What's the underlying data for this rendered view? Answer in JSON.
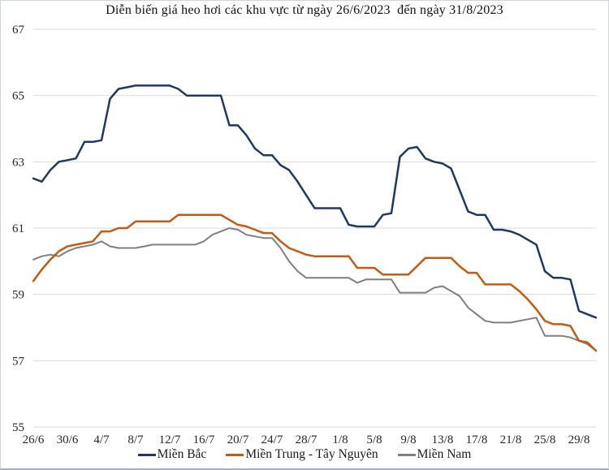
{
  "page": {
    "background": "#ffffff",
    "border_color": "#cfd4db"
  },
  "chart_data": {
    "type": "line",
    "title": "Diễn biến giá heo hơi các khu vực từ ngày 26/6/2023  đến ngày 31/8/2023",
    "xlabel": "",
    "ylabel": "",
    "ylim": [
      55,
      67
    ],
    "y_ticks": [
      67,
      65,
      63,
      61,
      59,
      57,
      55
    ],
    "grid": "horizontal",
    "grid_color": "#d9d9d9",
    "legend_position": "bottom",
    "x_tick_every": 4,
    "x_tick_labels": [
      "26/6",
      "30/6",
      "4/7",
      "8/7",
      "12/7",
      "16/7",
      "20/7",
      "24/7",
      "28/7",
      "1/8",
      "5/8",
      "9/8",
      "13/8",
      "17/8",
      "21/8",
      "25/8",
      "29/8"
    ],
    "x_dates": [
      "26/6",
      "27/6",
      "28/6",
      "29/6",
      "30/6",
      "1/7",
      "2/7",
      "3/7",
      "4/7",
      "5/7",
      "6/7",
      "7/7",
      "8/7",
      "9/7",
      "10/7",
      "11/7",
      "12/7",
      "13/7",
      "14/7",
      "15/7",
      "16/7",
      "17/7",
      "18/7",
      "19/7",
      "20/7",
      "21/7",
      "22/7",
      "23/7",
      "24/7",
      "25/7",
      "26/7",
      "27/7",
      "28/7",
      "29/7",
      "30/7",
      "31/7",
      "1/8",
      "2/8",
      "3/8",
      "4/8",
      "5/8",
      "6/8",
      "7/8",
      "8/8",
      "9/8",
      "10/8",
      "11/8",
      "12/8",
      "13/8",
      "14/8",
      "15/8",
      "16/8",
      "17/8",
      "18/8",
      "19/8",
      "20/8",
      "21/8",
      "22/8",
      "23/8",
      "24/8",
      "25/8",
      "26/8",
      "27/8",
      "28/8",
      "29/8",
      "30/8",
      "31/8"
    ],
    "series": [
      {
        "name": "Miền Bắc",
        "color": "#1f3864",
        "values": [
          62.5,
          62.4,
          62.75,
          63.0,
          63.05,
          63.1,
          63.6,
          63.6,
          63.65,
          64.9,
          65.2,
          65.25,
          65.3,
          65.3,
          65.3,
          65.3,
          65.3,
          65.2,
          65.0,
          65.0,
          65.0,
          65.0,
          65.0,
          64.1,
          64.1,
          63.8,
          63.4,
          63.2,
          63.2,
          62.9,
          62.75,
          62.4,
          62.0,
          61.6,
          61.6,
          61.6,
          61.6,
          61.1,
          61.05,
          61.05,
          61.05,
          61.4,
          61.45,
          63.15,
          63.4,
          63.45,
          63.1,
          63.0,
          62.95,
          62.8,
          62.15,
          61.5,
          61.4,
          61.4,
          60.95,
          60.95,
          60.9,
          60.8,
          60.65,
          60.5,
          59.7,
          59.5,
          59.5,
          59.45,
          58.5,
          58.4,
          58.3
        ]
      },
      {
        "name": "Miền Trung - Tây Nguyên",
        "color": "#c55a11",
        "values": [
          59.4,
          59.75,
          60.05,
          60.3,
          60.45,
          60.5,
          60.55,
          60.6,
          60.9,
          60.9,
          61.0,
          61.0,
          61.2,
          61.2,
          61.2,
          61.2,
          61.2,
          61.4,
          61.4,
          61.4,
          61.4,
          61.4,
          61.4,
          61.25,
          61.1,
          61.05,
          60.95,
          60.85,
          60.85,
          60.6,
          60.4,
          60.3,
          60.2,
          60.15,
          60.15,
          60.15,
          60.15,
          60.15,
          59.8,
          59.8,
          59.8,
          59.6,
          59.6,
          59.6,
          59.6,
          59.85,
          60.1,
          60.1,
          60.1,
          60.1,
          59.85,
          59.65,
          59.65,
          59.3,
          59.3,
          59.3,
          59.3,
          59.1,
          58.85,
          58.55,
          58.2,
          58.1,
          58.1,
          58.05,
          57.6,
          57.55,
          57.3
        ]
      },
      {
        "name": "Miền Nam",
        "color": "#7f7f7f",
        "values": [
          60.05,
          60.15,
          60.2,
          60.15,
          60.3,
          60.4,
          60.45,
          60.5,
          60.6,
          60.45,
          60.4,
          60.4,
          60.4,
          60.45,
          60.5,
          60.5,
          60.5,
          60.5,
          60.5,
          60.5,
          60.6,
          60.8,
          60.9,
          61.0,
          60.95,
          60.8,
          60.75,
          60.7,
          60.7,
          60.4,
          60.0,
          59.7,
          59.5,
          59.5,
          59.5,
          59.5,
          59.5,
          59.5,
          59.35,
          59.45,
          59.45,
          59.45,
          59.45,
          59.05,
          59.05,
          59.05,
          59.05,
          59.2,
          59.25,
          59.1,
          58.95,
          58.6,
          58.4,
          58.2,
          58.15,
          58.15,
          58.15,
          58.2,
          58.25,
          58.3,
          57.75,
          57.75,
          57.75,
          57.7,
          57.6,
          57.5,
          57.3
        ]
      }
    ]
  }
}
